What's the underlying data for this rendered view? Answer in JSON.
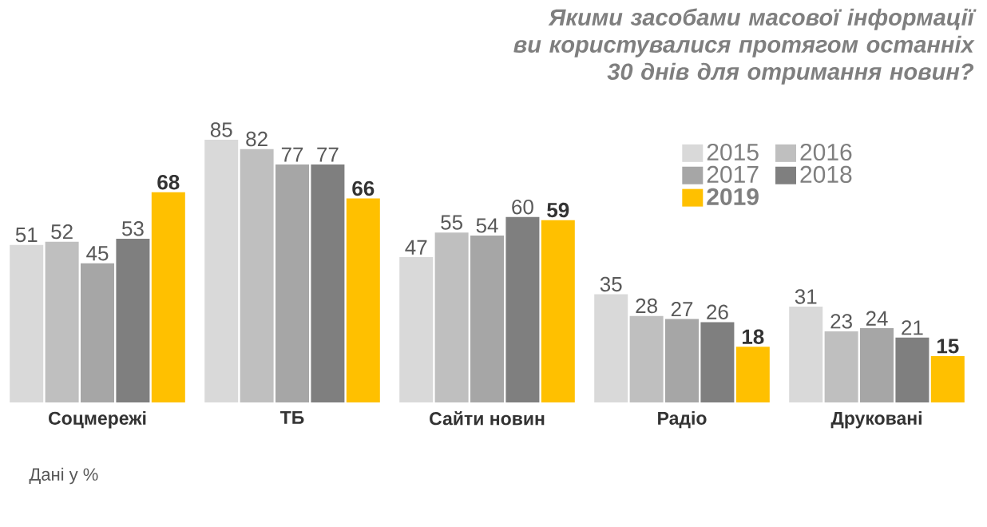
{
  "chart_data": {
    "type": "bar",
    "title": "Якими засобами масової інформації ви користувалися протягом останніх 30 днів для отримання новин?",
    "categories": [
      "Соцмережі",
      "ТБ",
      "Сайти новин",
      "Радіо",
      "Друковані"
    ],
    "series": [
      {
        "name": "2015",
        "color": "#d9d9d9",
        "values": [
          51,
          85,
          47,
          35,
          31
        ]
      },
      {
        "name": "2016",
        "color": "#bfbfbf",
        "values": [
          52,
          82,
          55,
          28,
          23
        ]
      },
      {
        "name": "2017",
        "color": "#a6a6a6",
        "values": [
          45,
          77,
          54,
          27,
          24
        ]
      },
      {
        "name": "2018",
        "color": "#7f7f7f",
        "values": [
          53,
          77,
          60,
          26,
          21
        ]
      },
      {
        "name": "2019",
        "color": "#ffc000",
        "values": [
          68,
          66,
          59,
          18,
          15
        ]
      }
    ],
    "data_labels": true,
    "legend": "top right",
    "annotations": [
      "Дані у %"
    ]
  }
}
